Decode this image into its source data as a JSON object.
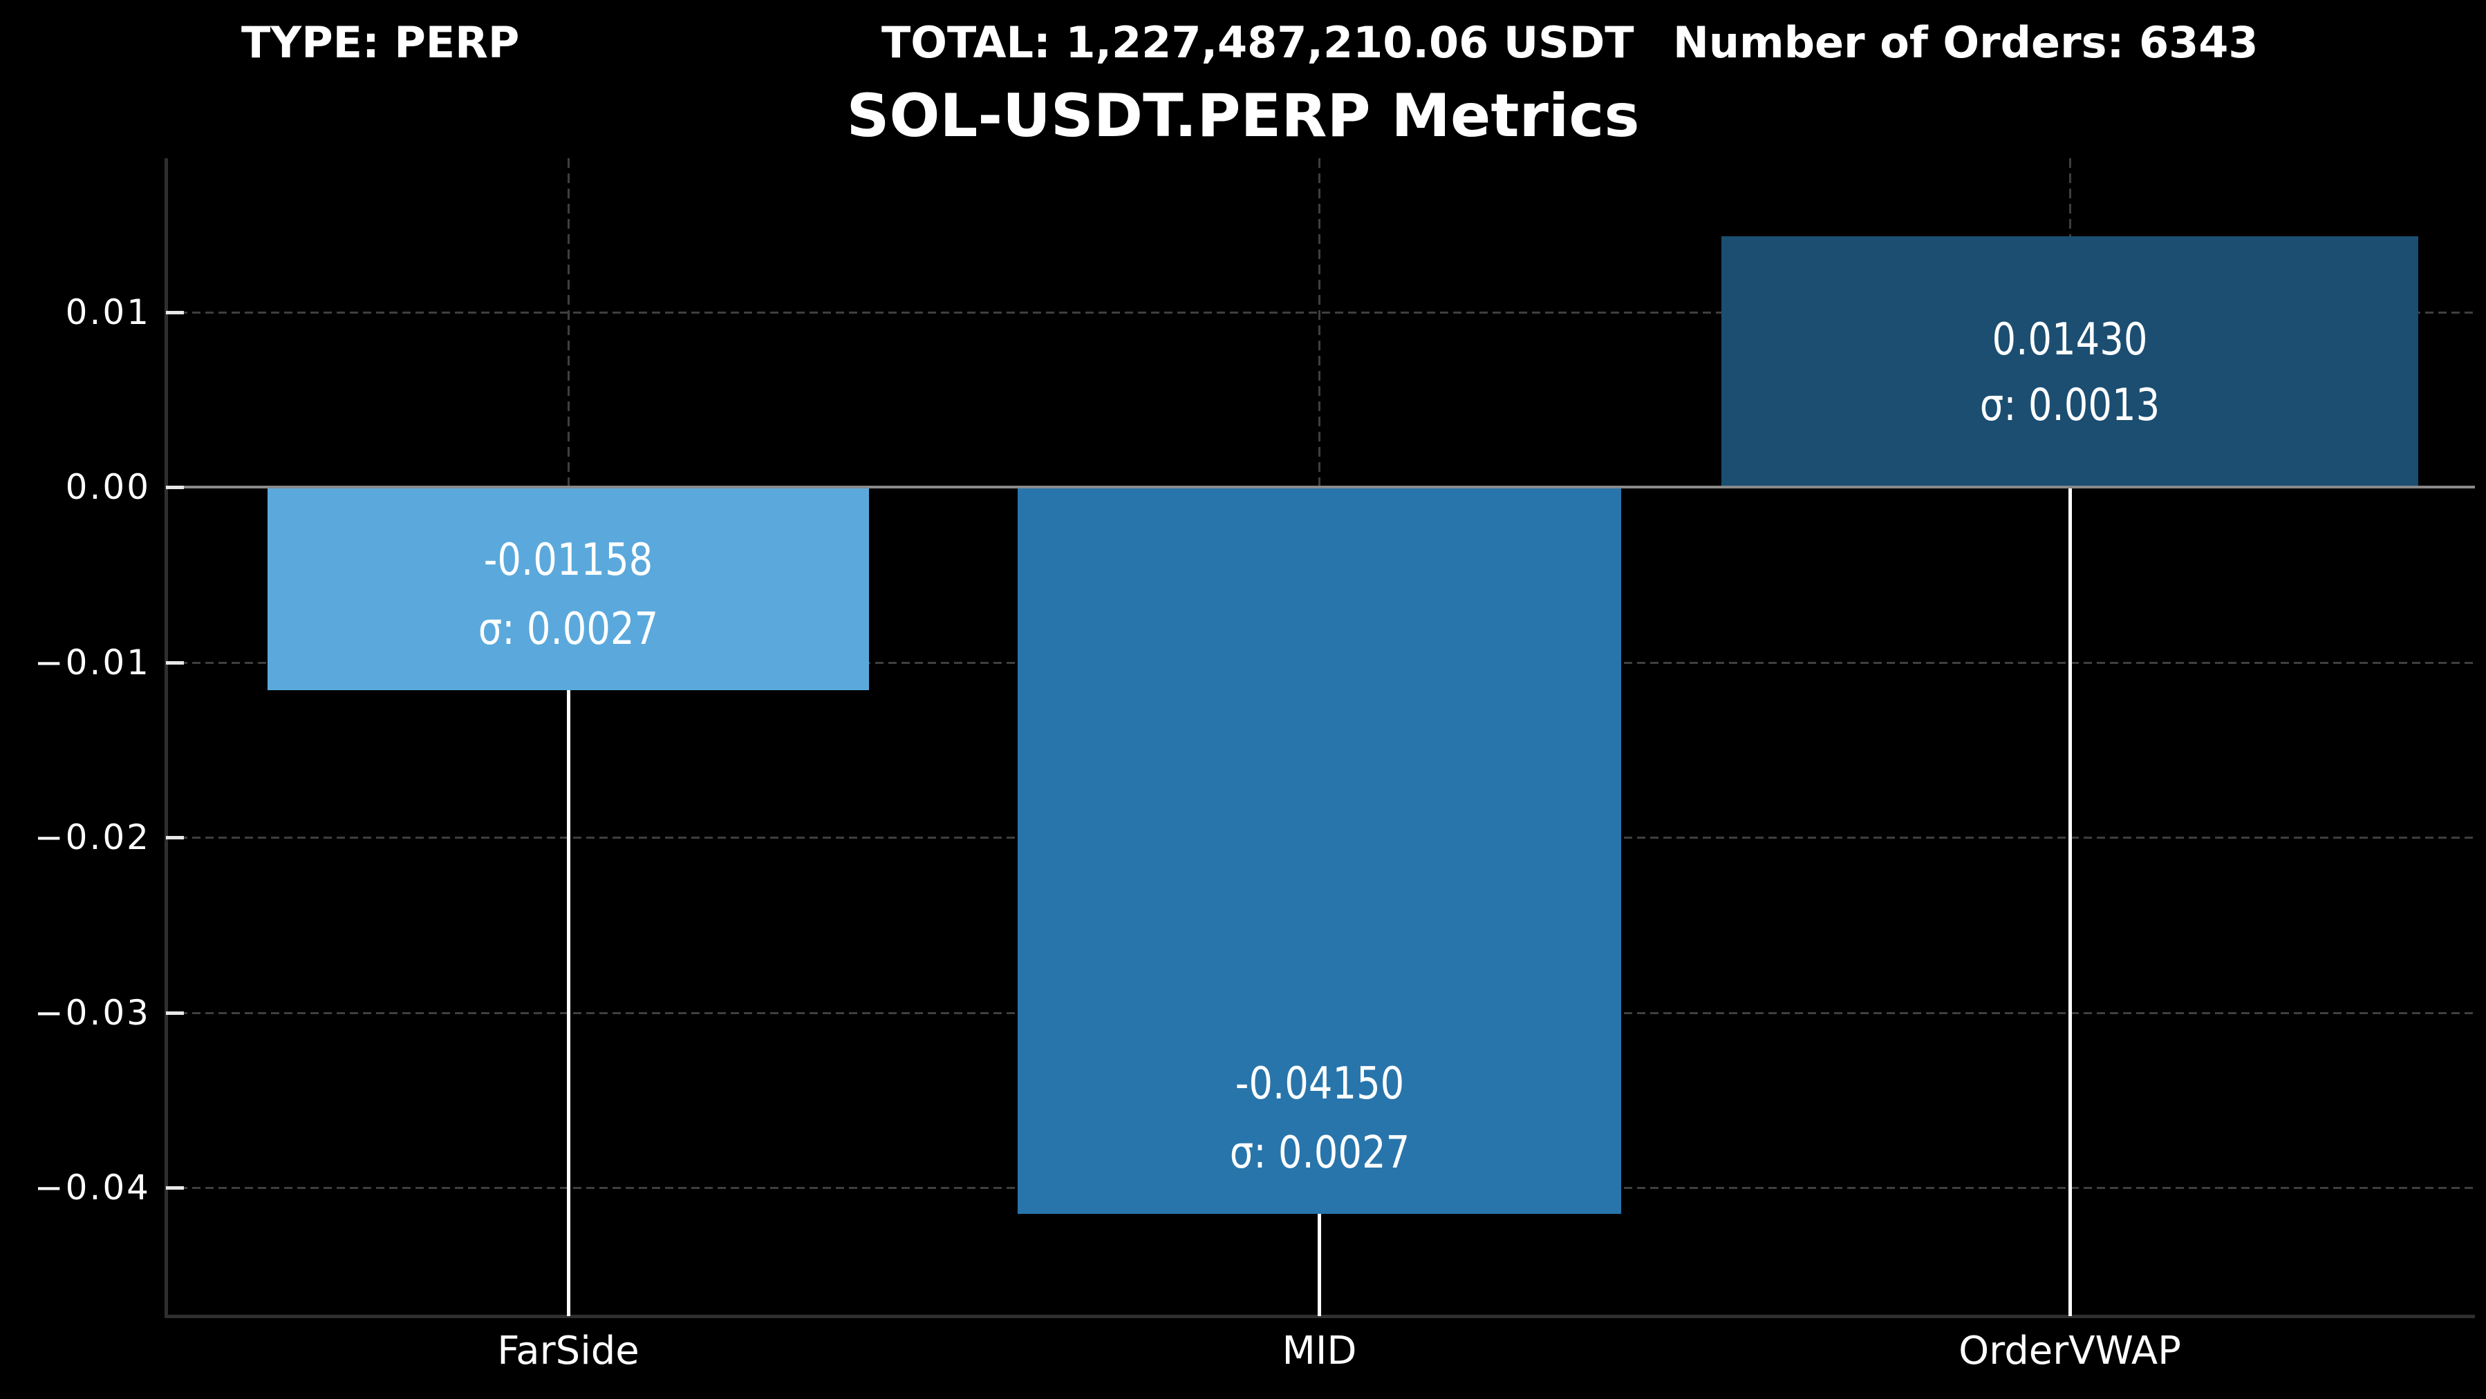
{
  "header": {
    "type": "TYPE: PERP",
    "total": "TOTAL: 1,227,487,210.06 USDT",
    "orders": "Number of Orders: 6343"
  },
  "chart_data": {
    "type": "bar",
    "title": "SOL-USDT.PERP Metrics",
    "categories": [
      "FarSide",
      "MID",
      "OrderVWAP"
    ],
    "values": [
      -0.01158,
      -0.0415,
      0.0143
    ],
    "sigmas": [
      0.0027,
      0.0027,
      0.0013
    ],
    "value_labels": [
      "-0.01158",
      "-0.04150",
      "0.01430"
    ],
    "sigma_labels": [
      "σ: 0.0027",
      "σ: 0.0027",
      "σ: 0.0013"
    ],
    "bar_colors": [
      "#5BA9DC",
      "#2875AC",
      "#1B4E71"
    ],
    "y_ticks": [
      {
        "label": "0.01",
        "value": 0.01
      },
      {
        "label": "0.00",
        "value": 0.0
      },
      {
        "label": "−0.01",
        "value": -0.01
      },
      {
        "label": "−0.02",
        "value": -0.02
      },
      {
        "label": "−0.03",
        "value": -0.03
      },
      {
        "label": "−0.04",
        "value": -0.04
      }
    ],
    "ylim": [
      -0.0473,
      0.0188
    ],
    "xlabel": "",
    "ylabel": "",
    "grid": {
      "horizontal": "dashed",
      "vertical_at_bar_centers": "dashed above zero, solid white below zero",
      "color": "#3f3f3f"
    },
    "zero_line_color": "#8a8a8a",
    "legend": "none",
    "background_color": "#000000",
    "text_color": "#ffffff"
  }
}
